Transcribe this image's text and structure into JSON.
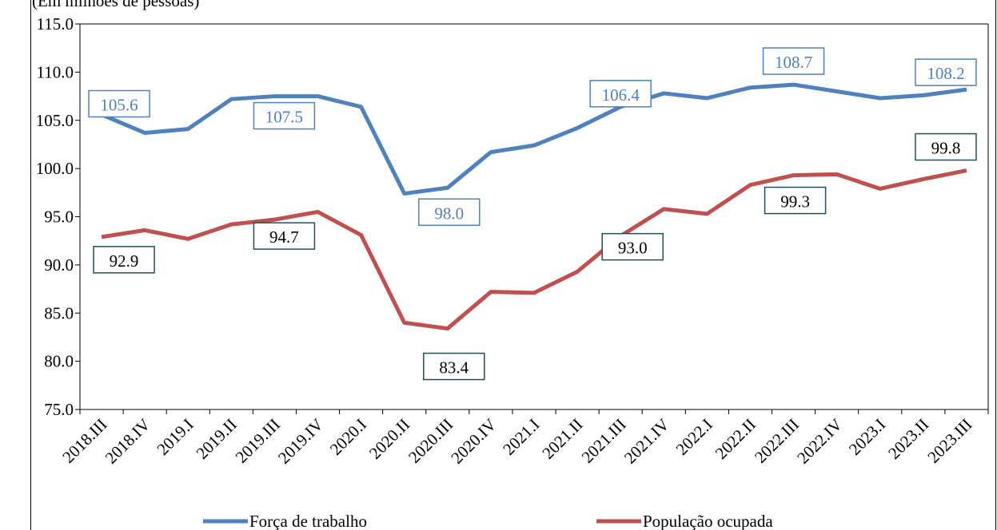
{
  "chart_data": {
    "type": "line",
    "subtitle": "(Em milhões de pessoas)",
    "categories": [
      "2018.III",
      "2018.IV",
      "2019.I",
      "2019.II",
      "2019.III",
      "2019.IV",
      "2020.I",
      "2020.II",
      "2020.III",
      "2020.IV",
      "2021.I",
      "2021.II",
      "2021.III",
      "2021.IV",
      "2022.I",
      "2022.II",
      "2022.III",
      "2022.IV",
      "2023.I",
      "2023.II",
      "2023.III"
    ],
    "series": [
      {
        "name": "Força de trabalho",
        "color": "#4f81bd",
        "values": [
          105.6,
          103.7,
          104.1,
          107.2,
          107.5,
          107.5,
          106.4,
          97.4,
          98.0,
          101.7,
          102.4,
          104.2,
          106.4,
          107.8,
          107.3,
          108.4,
          108.7,
          108.0,
          107.3,
          107.6,
          108.2
        ],
        "value_labels": [
          "105.6",
          null,
          null,
          null,
          "107.5",
          null,
          null,
          null,
          "98.0",
          null,
          null,
          null,
          "106.4",
          null,
          null,
          null,
          "108.7",
          null,
          null,
          null,
          "108.2"
        ]
      },
      {
        "name": "População ocupada",
        "color": "#c0504d",
        "values": [
          92.9,
          93.6,
          92.7,
          94.2,
          94.7,
          95.5,
          93.1,
          84.0,
          83.4,
          87.2,
          87.1,
          89.3,
          93.0,
          95.8,
          95.3,
          98.3,
          99.3,
          99.4,
          97.9,
          98.9,
          99.8
        ],
        "value_labels": [
          "92.9",
          null,
          null,
          null,
          "94.7",
          null,
          null,
          null,
          "83.4",
          null,
          null,
          null,
          "93.0",
          null,
          null,
          null,
          "99.3",
          null,
          null,
          null,
          "99.8"
        ]
      }
    ],
    "ylim": [
      75,
      115
    ],
    "yticks": [
      {
        "value": 75,
        "label": "75.0"
      },
      {
        "value": 80,
        "label": "80.0"
      },
      {
        "value": 85,
        "label": "85.0"
      },
      {
        "value": 90,
        "label": "90.0"
      },
      {
        "value": 95,
        "label": "95.0"
      },
      {
        "value": 100,
        "label": "100.0"
      },
      {
        "value": 105,
        "label": "105.0"
      },
      {
        "value": 110,
        "label": "110.0"
      },
      {
        "value": 115,
        "label": "115.0"
      }
    ],
    "grid": false,
    "legend": "bottom"
  }
}
